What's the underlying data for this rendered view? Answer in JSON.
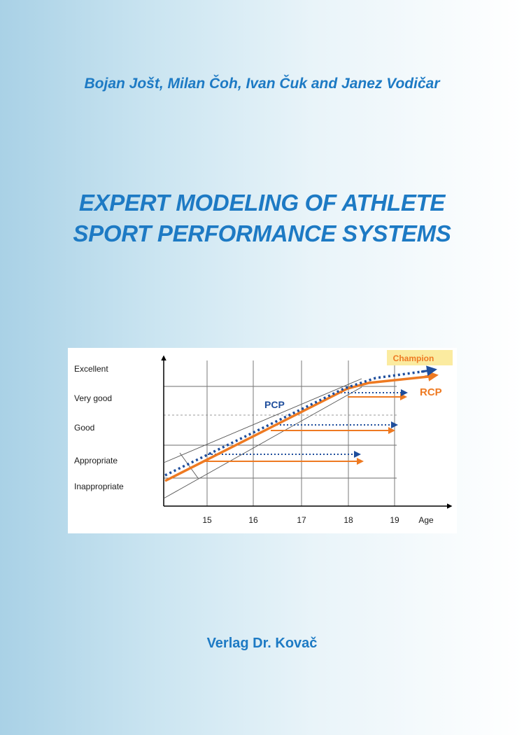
{
  "cover": {
    "authors": "Bojan Jošt, Milan Čoh, Ivan Čuk and Janez Vodičar",
    "title_lines": [
      "EXPERT MODELING OF ATHLETE",
      "SPORT PERFORMANCE SYSTEMS"
    ],
    "publisher": "Verlag Dr. Kovač"
  },
  "colors": {
    "accent_blue": "#1d7ac4",
    "pcp_blue": "#1f4e9c",
    "rcp_orange": "#ee7a22",
    "champion_bg": "#fbeba0"
  },
  "chart_data": {
    "type": "line",
    "x": [
      15,
      16,
      17,
      18,
      19
    ],
    "xlabel": "Age",
    "y_categories": [
      "Inappropriate",
      "Appropriate",
      "Good",
      "Very good",
      "Excellent"
    ],
    "series": [
      {
        "name": "PCP",
        "style": "dotted"
      },
      {
        "name": "RCP",
        "style": "solid"
      }
    ],
    "annotations": [
      "Champion"
    ],
    "grid": true
  }
}
